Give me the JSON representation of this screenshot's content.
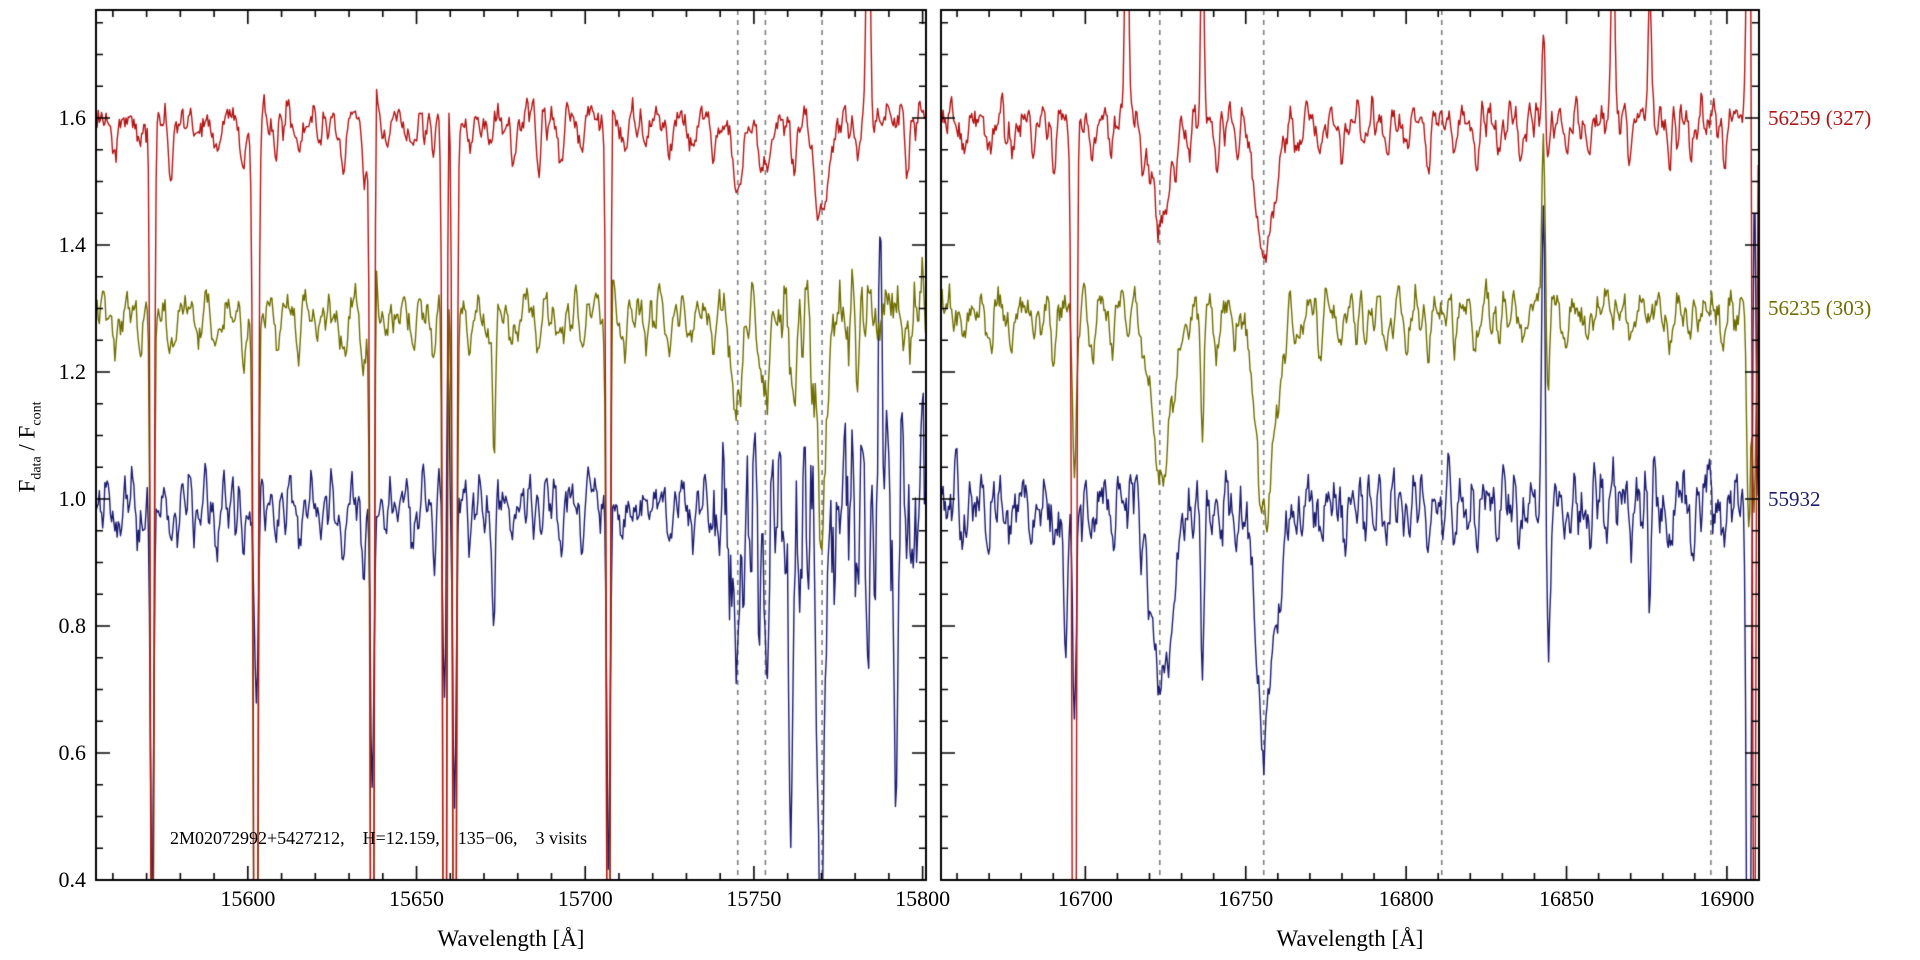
{
  "chart_data": {
    "type": "line",
    "title": "",
    "xlabel": "Wavelength [Å]",
    "ylabel": "F_data / F_cont",
    "ylabel_parts": {
      "base1": "F",
      "sub1": "data",
      "mid": " / F",
      "sub2": "cont"
    },
    "ylim": [
      0.4,
      1.77
    ],
    "yticks": [
      0.4,
      0.6,
      0.8,
      1.0,
      1.2,
      1.4,
      1.6
    ],
    "ytick_labels": [
      "0.4",
      "0.6",
      "0.8",
      "1.0",
      "1.2",
      "1.4",
      "1.6"
    ],
    "annotation": "2M02072992+5427212,    H=12.159,    135−06,    3 visits",
    "grid": "off",
    "legend_position": "right-outside",
    "series": [
      {
        "label": "56259 (327)",
        "color": "#b31414",
        "offset": 1.6,
        "noise": 0.013,
        "seed": 11,
        "noisy_regions": []
      },
      {
        "label": "56235 (303)",
        "color": "#6e6e00",
        "offset": 1.3,
        "noise": 0.015,
        "seed": 23,
        "noisy_regions": [
          {
            "panel": 0,
            "from": 15738,
            "to": 15801,
            "factor": 2.0
          }
        ]
      },
      {
        "label": "55932",
        "color": "#1c1c70",
        "offset": 1.0,
        "noise": 0.02,
        "seed": 37,
        "noisy_regions": [
          {
            "panel": 0,
            "from": 15738,
            "to": 15801,
            "factor": 3.4
          },
          {
            "panel": 1,
            "from": 16655,
            "to": 16910,
            "factor": 1.25
          }
        ]
      }
    ],
    "panels": [
      {
        "xlim": [
          15555,
          15801
        ],
        "xticks": [
          15600,
          15650,
          15700,
          15750,
          15800
        ],
        "xtick_labels": [
          "15600",
          "15650",
          "15700",
          "15750",
          "15800"
        ],
        "minor_tick_step": 10,
        "dashed_lines": [
          15745.2,
          15753.4,
          15770.2
        ],
        "lines": [
          [
            15560.8,
            0.8,
            0.07
          ],
          [
            15568,
            0.7,
            0.06
          ],
          [
            15577.4,
            0.9,
            0.08
          ],
          [
            15585.2,
            0.7,
            0.05
          ],
          [
            15591,
            0.8,
            0.06
          ],
          [
            15598.5,
            0.9,
            0.07
          ],
          [
            15608.3,
            0.7,
            0.05
          ],
          [
            15614.9,
            0.8,
            0.06
          ],
          [
            15621.5,
            0.7,
            0.05
          ],
          [
            15628,
            1,
            0.07
          ],
          [
            15634.5,
            0.8,
            0.09
          ],
          [
            15641.2,
            0.7,
            0.05
          ],
          [
            15648.6,
            0.9,
            0.06
          ],
          [
            15655,
            0.8,
            0.05
          ],
          [
            15666,
            0.8,
            0.06
          ],
          [
            15671.8,
            0.7,
            0.05
          ],
          [
            15678.4,
            0.9,
            0.06
          ],
          [
            15686,
            0.8,
            0.05
          ],
          [
            15692.6,
            0.8,
            0.07
          ],
          [
            15699,
            0.7,
            0.05
          ],
          [
            15711.5,
            0.9,
            0.06
          ],
          [
            15718.2,
            0.8,
            0.05
          ],
          [
            15724.8,
            0.8,
            0.06
          ],
          [
            15731.4,
            0.9,
            0.05
          ],
          [
            15738,
            0.8,
            0.06
          ],
          [
            15781,
            0.8,
            0.06
          ],
          [
            15795.5,
            0.8,
            0.06
          ]
        ],
        "strong": [
          [
            15745.2,
            1.5,
            [
              0.12,
              0.16,
              0.22
            ]
          ],
          [
            15753.4,
            1.4,
            [
              0.1,
              0.14,
              0.2
            ]
          ],
          [
            15770.2,
            2.0,
            [
              0.16,
              0.2,
              0.3
            ]
          ],
          [
            15762.0,
            1.2,
            [
              0.06,
              0.1,
              0.15
            ]
          ]
        ],
        "spikes": [
          [
            15571.6,
            0.5,
            [
              1.7,
              1.3,
              0.62
            ]
          ],
          [
            15571.0,
            0.4,
            [
              -0.2,
              -0.15,
              0
            ]
          ],
          [
            15602.4,
            0.6,
            [
              2.2,
              1.9,
              0.33
            ]
          ],
          [
            15603.2,
            0.4,
            [
              -0.25,
              -0.2,
              0
            ]
          ],
          [
            15636.9,
            0.5,
            [
              2.2,
              1.7,
              0.48
            ]
          ],
          [
            15637.7,
            0.4,
            [
              -0.22,
              -0.18,
              0
            ]
          ],
          [
            15658.4,
            0.5,
            [
              2.2,
              1.9,
              0.36
            ]
          ],
          [
            15659.2,
            0.4,
            [
              -0.25,
              -0.2,
              -0.28
            ]
          ],
          [
            15661.3,
            0.5,
            [
              1.9,
              1.6,
              0.47
            ]
          ],
          [
            15673.0,
            0.4,
            [
              0,
              0.25,
              0.2
            ]
          ],
          [
            15706.9,
            0.5,
            [
              2.0,
              1.6,
              0.6
            ]
          ],
          [
            15707.7,
            0.4,
            [
              -0.22,
              -0.18,
              0
            ]
          ],
          [
            15760.8,
            0.5,
            [
              0,
              0,
              0.45
            ]
          ],
          [
            15769.9,
            0.6,
            [
              0,
              0.22,
              0.42
            ]
          ],
          [
            15783.9,
            0.5,
            [
              -0.5,
              0,
              0.3
            ]
          ],
          [
            15787.5,
            0.5,
            [
              0,
              0,
              -0.38
            ]
          ],
          [
            15792.0,
            0.5,
            [
              0,
              0,
              0.5
            ]
          ]
        ]
      },
      {
        "xlim": [
          16655,
          16910
        ],
        "xticks": [
          16700,
          16750,
          16800,
          16850,
          16900
        ],
        "xtick_labels": [
          "16700",
          "16750",
          "16800",
          "16850",
          "16900"
        ],
        "minor_tick_step": 10,
        "dashed_lines": [
          16723.2,
          16755.6,
          16811.1,
          16895.0
        ],
        "lines": [
          [
            16662,
            0.8,
            0.06
          ],
          [
            16670,
            0.9,
            0.05
          ],
          [
            16677,
            0.8,
            0.06
          ],
          [
            16684,
            0.7,
            0.05
          ],
          [
            16690,
            0.8,
            0.07
          ],
          [
            16702,
            0.9,
            0.06
          ],
          [
            16708,
            0.7,
            0.05
          ],
          [
            16718,
            0.8,
            0.06
          ],
          [
            16732,
            0.8,
            0.05
          ],
          [
            16741,
            0.9,
            0.06
          ],
          [
            16747,
            0.7,
            0.05
          ],
          [
            16766,
            0.8,
            0.06
          ],
          [
            16773,
            0.9,
            0.05
          ],
          [
            16780,
            0.8,
            0.06
          ],
          [
            16787,
            0.7,
            0.05
          ],
          [
            16794,
            0.9,
            0.06
          ],
          [
            16800,
            0.8,
            0.05
          ],
          [
            16807,
            0.8,
            0.06
          ],
          [
            16815,
            0.7,
            0.05
          ],
          [
            16822,
            0.9,
            0.06
          ],
          [
            16829,
            0.8,
            0.05
          ],
          [
            16836,
            0.8,
            0.06
          ],
          [
            16850,
            0.9,
            0.05
          ],
          [
            16857,
            0.8,
            0.06
          ],
          [
            16870,
            0.8,
            0.05
          ],
          [
            16882,
            0.9,
            0.06
          ],
          [
            16889,
            0.8,
            0.05
          ],
          [
            16899,
            0.8,
            0.06
          ]
        ],
        "strong": [
          [
            16723.2,
            2.4,
            [
              0.17,
              0.27,
              0.31
            ]
          ],
          [
            16727.5,
            1.5,
            [
              0.05,
              0.1,
              0.12
            ]
          ],
          [
            16755.7,
            2.6,
            [
              0.22,
              0.33,
              0.37
            ]
          ],
          [
            16760.5,
            1.5,
            [
              0.05,
              0.08,
              0.1
            ]
          ]
        ],
        "spikes": [
          [
            16696.6,
            0.6,
            [
              2.4,
              0.25,
              0.35
            ]
          ],
          [
            16697.4,
            0.4,
            [
              -0.35,
              0,
              0
            ]
          ],
          [
            16693.8,
            0.5,
            [
              0,
              0,
              0.3
            ]
          ],
          [
            16712.9,
            0.5,
            [
              -0.5,
              0,
              0
            ]
          ],
          [
            16736.5,
            0.5,
            [
              -0.3,
              0.2,
              0.25
            ]
          ],
          [
            16842.8,
            0.5,
            [
              -0.12,
              -0.28,
              -0.46
            ]
          ],
          [
            16844.3,
            0.5,
            [
              0.06,
              0.12,
              0.24
            ]
          ],
          [
            16864.5,
            0.5,
            [
              -0.35,
              0,
              0
            ]
          ],
          [
            16875.9,
            0.5,
            [
              -0.2,
              0,
              0.12
            ]
          ],
          [
            16906.8,
            0.6,
            [
              -0.6,
              0.35,
              1.2
            ]
          ],
          [
            16908.5,
            0.5,
            [
              1.5,
              0.3,
              -0.5
            ]
          ]
        ]
      }
    ]
  }
}
